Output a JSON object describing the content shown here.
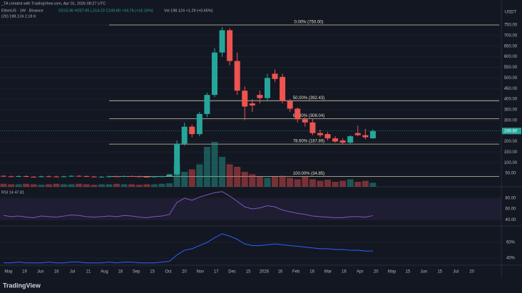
{
  "chart_data": {
    "type": "candlestick",
    "header": {
      "title": "_TA created with TradingView.com, Apr 01, 2026 08:27 UTC",
      "symbol": "EtherUS · 1W · Binance",
      "ohlc": "O215.06 H257.85 L214.23 C249.80 +34.76 (+16.16%)",
      "volume_label": "Vol 198.124 +1.29 (+0.65%)",
      "ma_label": "(20) 198.124 2.18 K"
    },
    "currency": "USDT",
    "x_labels": [
      "May",
      "19",
      "Jun",
      "16",
      "Jul",
      "21",
      "Aug",
      "18",
      "Sep",
      "15",
      "Oct",
      "20",
      "Nov",
      "17",
      "Dec",
      "15",
      "2026",
      "16",
      "Feb",
      "16",
      "Mar",
      "16",
      "Apr",
      "20",
      "May",
      "15",
      "Jun",
      "15",
      "Jul",
      "20"
    ],
    "open": [
      38,
      36,
      35,
      37,
      34,
      33,
      36,
      35,
      34,
      36,
      38,
      37,
      35,
      33,
      34,
      36,
      35,
      37,
      36,
      34,
      33,
      35,
      36,
      45,
      190,
      270,
      235,
      330,
      420,
      620,
      725,
      580,
      440,
      380,
      420,
      405,
      520,
      505,
      390,
      355,
      305,
      290,
      240,
      235,
      215,
      205,
      195,
      240,
      230,
      215
    ],
    "high": [
      41,
      39,
      40,
      40,
      37,
      39,
      39,
      38,
      39,
      41,
      41,
      40,
      38,
      37,
      39,
      39,
      40,
      40,
      39,
      37,
      38,
      39,
      40,
      205,
      290,
      280,
      340,
      430,
      640,
      740,
      735,
      620,
      460,
      400,
      440,
      520,
      540,
      520,
      400,
      360,
      315,
      310,
      255,
      245,
      225,
      215,
      230,
      275,
      260,
      258
    ],
    "low": [
      33,
      32,
      32,
      31,
      30,
      30,
      32,
      31,
      31,
      33,
      34,
      32,
      30,
      30,
      31,
      32,
      32,
      33,
      31,
      30,
      30,
      32,
      33,
      40,
      180,
      220,
      225,
      315,
      410,
      600,
      560,
      420,
      300,
      340,
      380,
      395,
      480,
      380,
      340,
      290,
      270,
      230,
      220,
      205,
      195,
      185,
      190,
      225,
      210,
      214
    ],
    "close": [
      36,
      35,
      37,
      34,
      33,
      36,
      35,
      34,
      36,
      38,
      37,
      35,
      33,
      34,
      36,
      35,
      37,
      36,
      34,
      33,
      35,
      36,
      45,
      190,
      270,
      235,
      330,
      420,
      620,
      725,
      580,
      440,
      365,
      370,
      405,
      500,
      495,
      390,
      355,
      305,
      290,
      240,
      230,
      215,
      200,
      195,
      225,
      230,
      220,
      249.8
    ],
    "up_color": "#26a69a",
    "down_color": "#ef5350",
    "volume": [
      6,
      5,
      5,
      6,
      5,
      4,
      5,
      6,
      5,
      5,
      6,
      5,
      4,
      5,
      5,
      6,
      5,
      5,
      4,
      5,
      5,
      6,
      7,
      45,
      30,
      35,
      45,
      80,
      90,
      60,
      45,
      40,
      30,
      25,
      20,
      18,
      20,
      22,
      18,
      15,
      20,
      15,
      12,
      14,
      10,
      12,
      15,
      10,
      12,
      8
    ],
    "vlim": [
      0,
      100
    ],
    "ylim": [
      0,
      750
    ],
    "yticks": [
      {
        "value": 50,
        "label": "50.00"
      },
      {
        "value": 100,
        "label": "100.00"
      },
      {
        "value": 150,
        "label": "150.00"
      },
      {
        "value": 200,
        "label": "200.00"
      },
      {
        "value": 300,
        "label": "300.00"
      },
      {
        "value": 350,
        "label": "350.00"
      },
      {
        "value": 400,
        "label": "400.00"
      },
      {
        "value": 450,
        "label": "450.00"
      },
      {
        "value": 500,
        "label": "500.00"
      },
      {
        "value": 550,
        "label": "550.00"
      },
      {
        "value": 600,
        "label": "600.00"
      },
      {
        "value": 650,
        "label": "650.00"
      },
      {
        "value": 700,
        "label": "700.00"
      },
      {
        "value": 750,
        "label": "750.00"
      }
    ],
    "grid": true,
    "levels": [
      {
        "label": "0.00% (750.00)",
        "value": 750
      },
      {
        "label": "50.00% (392.43)",
        "value": 392.43
      },
      {
        "label": "61.80% (308.04)",
        "value": 308.04
      },
      {
        "label": "78.60% (187.89)",
        "value": 187.89
      },
      {
        "label": "100.00% (34.85)",
        "value": 34.85
      }
    ],
    "price_tag": {
      "value": 249.8,
      "label": "249.80"
    },
    "rsi": {
      "label": "RSI 14 47.81",
      "color": "#7e57c2",
      "values": [
        48,
        46,
        47,
        45,
        44,
        47,
        46,
        45,
        47,
        49,
        48,
        46,
        45,
        46,
        47,
        46,
        48,
        47,
        45,
        44,
        46,
        47,
        50,
        72,
        80,
        76,
        82,
        86,
        90,
        92,
        84,
        74,
        64,
        60,
        62,
        66,
        64,
        58,
        55,
        52,
        50,
        47,
        46,
        45,
        44,
        44,
        46,
        46,
        45,
        47.81
      ],
      "ylim": [
        30,
        97
      ],
      "yticks": [
        {
          "value": 40,
          "label": "40.00"
        },
        {
          "value": 60,
          "label": "60.00"
        },
        {
          "value": 80,
          "label": "80.00"
        }
      ]
    },
    "oscillator": {
      "color": "#2962ff",
      "values": [
        34,
        34,
        35,
        34,
        34,
        34,
        35,
        34,
        34,
        35,
        35,
        34,
        34,
        34,
        35,
        34,
        35,
        35,
        34,
        34,
        34,
        35,
        36,
        44,
        50,
        52,
        56,
        60,
        66,
        71,
        68,
        64,
        58,
        56,
        56,
        57,
        58,
        57,
        56,
        55,
        54,
        53,
        52,
        52,
        51,
        51,
        50,
        50,
        49,
        49
      ],
      "ylim": [
        31,
        80
      ],
      "yticks": [
        {
          "value": 40,
          "label": "40%"
        },
        {
          "value": 60,
          "label": "60%"
        }
      ]
    },
    "footer": "TradingView"
  }
}
